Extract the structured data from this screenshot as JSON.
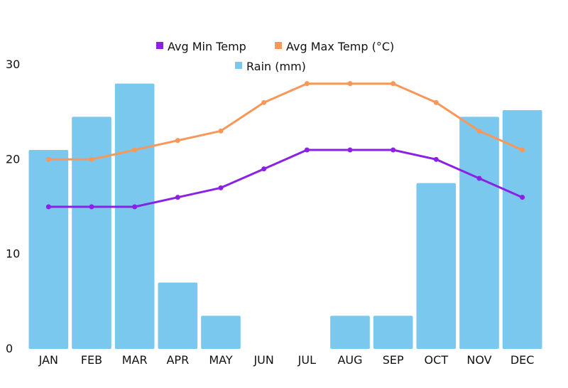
{
  "chart_data": {
    "type": "bar",
    "categories": [
      "JAN",
      "FEB",
      "MAR",
      "APR",
      "MAY",
      "JUN",
      "JUL",
      "AUG",
      "SEP",
      "OCT",
      "NOV",
      "DEC"
    ],
    "ylim": [
      0,
      30
    ],
    "yticks": [
      0,
      10,
      20,
      30
    ],
    "title": "",
    "xlabel": "",
    "ylabel": "",
    "grid": false,
    "legend_position": "top-center",
    "series": [
      {
        "name": "Avg Min Temp",
        "type": "line",
        "color": "#8a22e6",
        "values": [
          15,
          15,
          15,
          16,
          17,
          19,
          21,
          21,
          21,
          20,
          18,
          16
        ]
      },
      {
        "name": "Avg Max Temp (°C)",
        "type": "line",
        "color": "#f7975a",
        "values": [
          20,
          20,
          21,
          22,
          23,
          26,
          28,
          28,
          28,
          26,
          23,
          21
        ]
      },
      {
        "name": "Rain (mm)",
        "type": "bar",
        "color": "#7bc8ef",
        "values": [
          21,
          24.5,
          28,
          7,
          3.5,
          0,
          0,
          3.5,
          3.5,
          17.5,
          24.5,
          25.2
        ]
      }
    ]
  }
}
